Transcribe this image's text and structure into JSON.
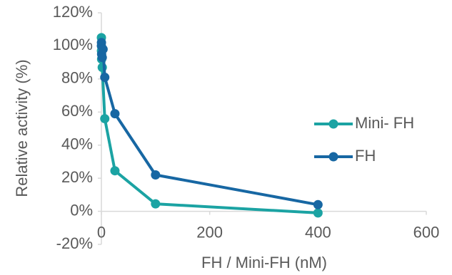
{
  "chart_data": {
    "type": "line",
    "xlabel": "FH / Mini-FH (nM)",
    "ylabel": "Relative activity (%)",
    "xlim": [
      0,
      600
    ],
    "xticks": [
      0,
      200,
      400,
      600
    ],
    "ylim": [
      -20,
      120
    ],
    "yticks": [
      {
        "value": -20,
        "label": "-20%"
      },
      {
        "value": 0,
        "label": "0%"
      },
      {
        "value": 20,
        "label": "20%"
      },
      {
        "value": 40,
        "label": "40%"
      },
      {
        "value": 60,
        "label": "60%"
      },
      {
        "value": 80,
        "label": "80%"
      },
      {
        "value": 100,
        "label": "100%"
      },
      {
        "value": 120,
        "label": "120%"
      }
    ],
    "grid": false,
    "legend": "right",
    "series": [
      {
        "name": "Mini- FH",
        "color": "#1ba3a3",
        "x": [
          0,
          0.1,
          0.4,
          1.6,
          6.25,
          25,
          100,
          400
        ],
        "values": [
          105,
          97,
          92,
          87,
          56,
          24.5,
          4.5,
          -1
        ]
      },
      {
        "name": "FH",
        "color": "#1767a3",
        "x": [
          0,
          0.1,
          0.4,
          1.6,
          3.1,
          6.25,
          25,
          100,
          400
        ],
        "values": [
          100,
          102,
          95,
          93,
          98,
          81,
          59,
          22,
          4
        ]
      }
    ]
  }
}
